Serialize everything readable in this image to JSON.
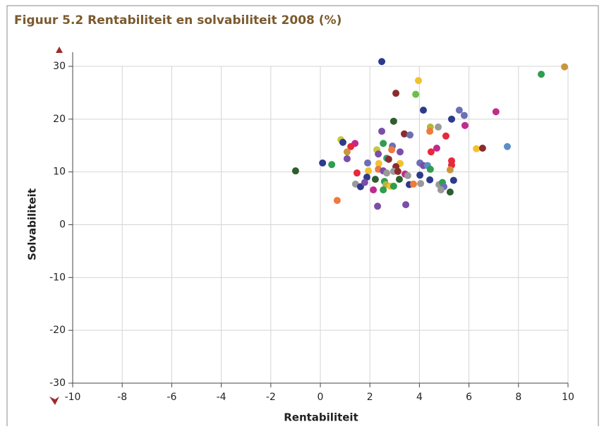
{
  "chart_data": {
    "type": "scatter",
    "title": "Figuur 5.2 Rentabiliteit en solvabiliteit 2008 (%)",
    "x_label": "Rentabiliteit",
    "y_label": "Solvabiliteit",
    "xlim": [
      -10,
      10
    ],
    "ylim": [
      -30,
      30
    ],
    "xticks": [
      -10,
      -8,
      -6,
      -4,
      -2,
      0,
      2,
      4,
      6,
      8,
      10
    ],
    "yticks": [
      -30,
      -20,
      -10,
      0,
      10,
      20,
      30
    ],
    "grid": true,
    "x": [
      2.48,
      9.86,
      8.92,
      3.96,
      3.05,
      3.85,
      4.16,
      5.61,
      5.81,
      7.09,
      5.3,
      2.96,
      4.44,
      4.76,
      5.84,
      2.48,
      3.39,
      3.62,
      4.42,
      5.07,
      0.83,
      0.91,
      1.4,
      1.23,
      1.08,
      2.54,
      2.91,
      2.88,
      2.28,
      2.34,
      3.22,
      4.7,
      4.47,
      6.3,
      6.55,
      7.55,
      1.08,
      2.68,
      2.76,
      2.36,
      3.22,
      3.05,
      1.91,
      0.09,
      4.02,
      4.16,
      4.33,
      5.3,
      5.3,
      4.44,
      5.24,
      -1.0,
      1.48,
      1.94,
      2.34,
      2.54,
      2.68,
      2.96,
      3.13,
      3.42,
      3.53,
      4.02,
      1.88,
      2.22,
      2.59,
      3.19,
      4.42,
      5.38,
      1.42,
      1.62,
      1.79,
      2.65,
      2.82,
      2.96,
      3.59,
      3.76,
      4.05,
      4.79,
      4.93,
      4.99,
      4.87,
      2.14,
      2.54,
      5.24,
      0.68,
      2.31,
      3.45,
      0.46
    ],
    "values": [
      30.9,
      29.9,
      28.5,
      27.3,
      24.9,
      24.7,
      21.7,
      21.7,
      20.7,
      21.4,
      20.0,
      19.6,
      18.5,
      18.5,
      18.8,
      17.7,
      17.2,
      17.0,
      17.7,
      16.8,
      16.1,
      15.6,
      15.4,
      14.8,
      13.8,
      15.4,
      14.9,
      14.2,
      14.2,
      13.4,
      13.8,
      14.5,
      13.8,
      14.4,
      14.5,
      14.8,
      12.5,
      12.6,
      12.4,
      11.6,
      11.6,
      11.0,
      11.7,
      11.7,
      11.7,
      11.2,
      11.2,
      12.1,
      11.3,
      10.5,
      10.4,
      10.2,
      9.8,
      10.2,
      10.5,
      10.2,
      9.8,
      10.1,
      10.1,
      9.6,
      9.3,
      9.4,
      9.0,
      8.6,
      8.2,
      8.6,
      8.5,
      8.4,
      7.7,
      7.2,
      8.0,
      7.6,
      7.3,
      7.3,
      7.6,
      7.7,
      7.8,
      7.6,
      8.0,
      7.2,
      6.6,
      6.6,
      6.6,
      6.2,
      4.6,
      3.5,
      3.8,
      11.4
    ],
    "colors": [
      "#2e3a8c",
      "#c8963c",
      "#2e9e4f",
      "#f2c12e",
      "#8b2c2c",
      "#6cc04a",
      "#2e3a8c",
      "#6b6fb5",
      "#6b6fb5",
      "#c02a8f",
      "#2e3a8c",
      "#2d5e2d",
      "#b5b53c",
      "#9a9a9a",
      "#c02a8f",
      "#7b4ea8",
      "#8b2c2c",
      "#6b6fb5",
      "#f07a3c",
      "#e8283c",
      "#c5c93c",
      "#2e3a8c",
      "#c02a8f",
      "#e8283c",
      "#c8963c",
      "#2e9e4f",
      "#6b6fb5",
      "#f07a3c",
      "#c5c93c",
      "#7b4ea8",
      "#7b4ea8",
      "#c02a8f",
      "#e8283c",
      "#f2c12e",
      "#8b2c2c",
      "#5b8fc8",
      "#7b4ea8",
      "#3a9a7a",
      "#8b2c2c",
      "#f2c12e",
      "#f2c12e",
      "#8b2c2c",
      "#6b6fb5",
      "#2e3a8c",
      "#6b6fb5",
      "#7b4ea8",
      "#5b8fc8",
      "#e8283c",
      "#e8283c",
      "#2e9e4f",
      "#c8963c",
      "#2d5e2d",
      "#e8283c",
      "#f2c12e",
      "#f07a3c",
      "#7b4ea8",
      "#9a9a9a",
      "#9a9a9a",
      "#8b2c2c",
      "#c02a8f",
      "#9a9a9a",
      "#2e3a8c",
      "#2e3a8c",
      "#2d5e2d",
      "#2e9e4f",
      "#2d5e2d",
      "#2e3a8c",
      "#2e3a8c",
      "#9a9a9a",
      "#2e3a8c",
      "#7b4ea8",
      "#b5b53c",
      "#f2c12e",
      "#2e9e4f",
      "#2e3a8c",
      "#f07a3c",
      "#9a9a9a",
      "#9a9a9a",
      "#2e9e4f",
      "#6b6fb5",
      "#9a9a9a",
      "#c02a8f",
      "#2e9e4f",
      "#2d5e2d",
      "#f07a3c",
      "#7b4ea8",
      "#7b4ea8",
      "#2e9e4f"
    ]
  }
}
